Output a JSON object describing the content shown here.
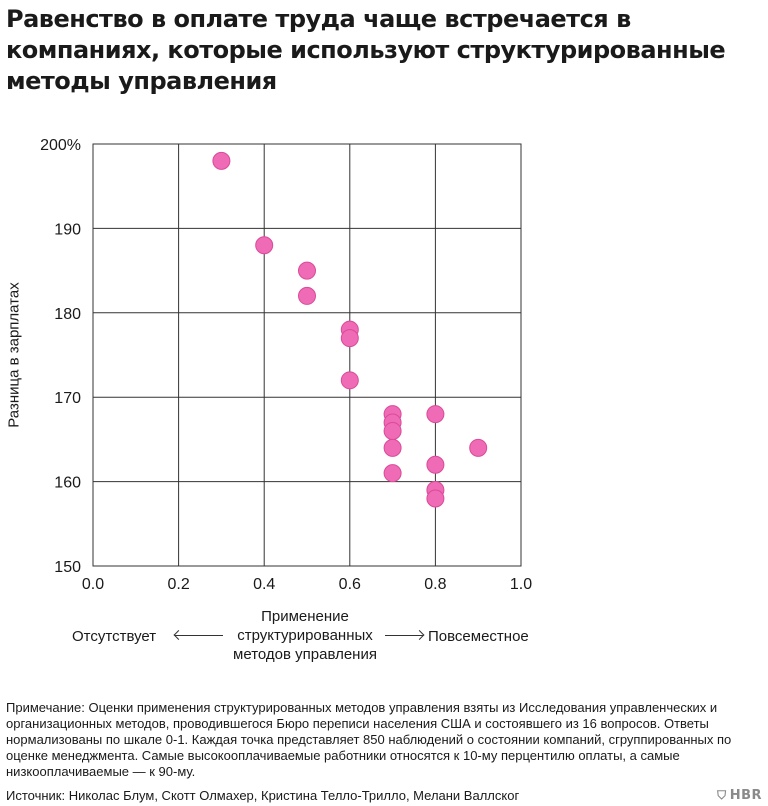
{
  "title": "Равенство в оплате труда чаще встречается в компаниях, которые используют структурированные методы управления",
  "chart_data": {
    "type": "scatter",
    "ylabel": "Разница в зарплатах",
    "xlabel_lines": [
      "Применение",
      "структурированных",
      "методов управления"
    ],
    "x_left_label": "Отсутствует",
    "x_right_label": "Повсеместное",
    "xlim": [
      0,
      1
    ],
    "ylim": [
      150,
      200
    ],
    "x_ticks": [
      "0.0",
      "0.2",
      "0.4",
      "0.6",
      "0.8",
      "1.0"
    ],
    "y_ticks": [
      "200%",
      "190",
      "180",
      "170",
      "160",
      "150"
    ],
    "y_tick_values": [
      200,
      190,
      180,
      170,
      160,
      150
    ],
    "x_tick_values": [
      0,
      0.2,
      0.4,
      0.6,
      0.8,
      1.0
    ],
    "grid": true,
    "point_color": "#f06bb5",
    "point_stroke": "#d94a9a",
    "points": [
      {
        "x": 0.3,
        "y": 198
      },
      {
        "x": 0.4,
        "y": 188
      },
      {
        "x": 0.5,
        "y": 185
      },
      {
        "x": 0.5,
        "y": 182
      },
      {
        "x": 0.6,
        "y": 178
      },
      {
        "x": 0.6,
        "y": 177
      },
      {
        "x": 0.6,
        "y": 172
      },
      {
        "x": 0.7,
        "y": 168
      },
      {
        "x": 0.7,
        "y": 167
      },
      {
        "x": 0.7,
        "y": 166
      },
      {
        "x": 0.7,
        "y": 164
      },
      {
        "x": 0.7,
        "y": 161
      },
      {
        "x": 0.8,
        "y": 168
      },
      {
        "x": 0.8,
        "y": 162
      },
      {
        "x": 0.8,
        "y": 159
      },
      {
        "x": 0.8,
        "y": 158
      },
      {
        "x": 0.9,
        "y": 164
      }
    ]
  },
  "note": "Примечание: Оценки применения структурированных методов управления взяты из Исследования управленческих и организационных методов, проводившегося Бюро переписи населения США и состоявшего из 16 вопросов. Ответы нормализованы по шкале 0-1. Каждая точка представляет 850 наблюдений о состоянии компаний, сгруппированных по оценке менеджмента. Самые высокооплачиваемые работники относятся к 10-му перцентилю оплаты, а самые низкооплачиваемые — к 90-му.",
  "source": "Источник: Николас Блум, Скотт Олмахер, Кристина Телло-Трилло, Мелани Валлског",
  "brand": "HBR"
}
